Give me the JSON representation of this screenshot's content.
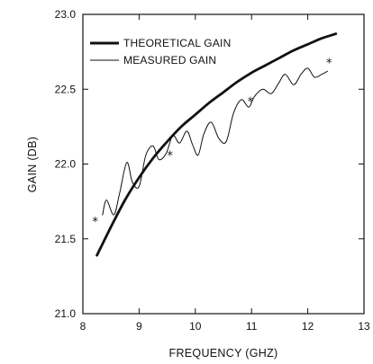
{
  "chart_data": {
    "type": "line",
    "xlabel": "FREQUENCY (GHZ)",
    "ylabel": "GAIN (DB)",
    "xlim": [
      8,
      13
    ],
    "ylim": [
      21.0,
      23.0
    ],
    "x_ticks": [
      "8",
      "9",
      "10",
      "11",
      "12",
      "13"
    ],
    "y_ticks": [
      "21.0",
      "21.5",
      "22.0",
      "22.5",
      "23.0"
    ],
    "grid": false,
    "legend_position": "top-left",
    "series": [
      {
        "name": "THEORETICAL GAIN",
        "style": "thick",
        "x": [
          8.25,
          8.5,
          8.75,
          9.0,
          9.25,
          9.5,
          9.75,
          10.0,
          10.25,
          10.5,
          10.75,
          11.0,
          11.25,
          11.5,
          11.75,
          12.0,
          12.25,
          12.5
        ],
        "y": [
          21.39,
          21.58,
          21.76,
          21.91,
          22.04,
          22.15,
          22.25,
          22.33,
          22.41,
          22.48,
          22.55,
          22.61,
          22.66,
          22.71,
          22.76,
          22.8,
          22.84,
          22.87
        ]
      },
      {
        "name": "MEASURED GAIN",
        "style": "thin",
        "x": [
          8.35,
          8.42,
          8.55,
          8.65,
          8.78,
          8.88,
          9.0,
          9.12,
          9.25,
          9.35,
          9.48,
          9.6,
          9.72,
          9.85,
          9.95,
          10.05,
          10.15,
          10.28,
          10.42,
          10.55,
          10.68,
          10.82,
          10.95,
          11.05,
          11.2,
          11.35,
          11.48,
          11.6,
          11.75,
          11.88,
          12.0,
          12.12,
          12.25,
          12.35
        ],
        "y": [
          21.66,
          21.76,
          21.66,
          21.8,
          22.01,
          21.88,
          21.85,
          22.06,
          22.12,
          22.03,
          22.07,
          22.19,
          22.14,
          22.22,
          22.13,
          22.06,
          22.2,
          22.28,
          22.17,
          22.15,
          22.34,
          22.43,
          22.38,
          22.45,
          22.5,
          22.47,
          22.54,
          22.6,
          22.53,
          22.6,
          22.64,
          22.58,
          22.6,
          22.62
        ]
      }
    ],
    "markers": [
      {
        "x": 8.22,
        "y": 21.62
      },
      {
        "x": 9.55,
        "y": 22.06
      },
      {
        "x": 10.98,
        "y": 22.42
      },
      {
        "x": 12.38,
        "y": 22.68
      }
    ]
  }
}
